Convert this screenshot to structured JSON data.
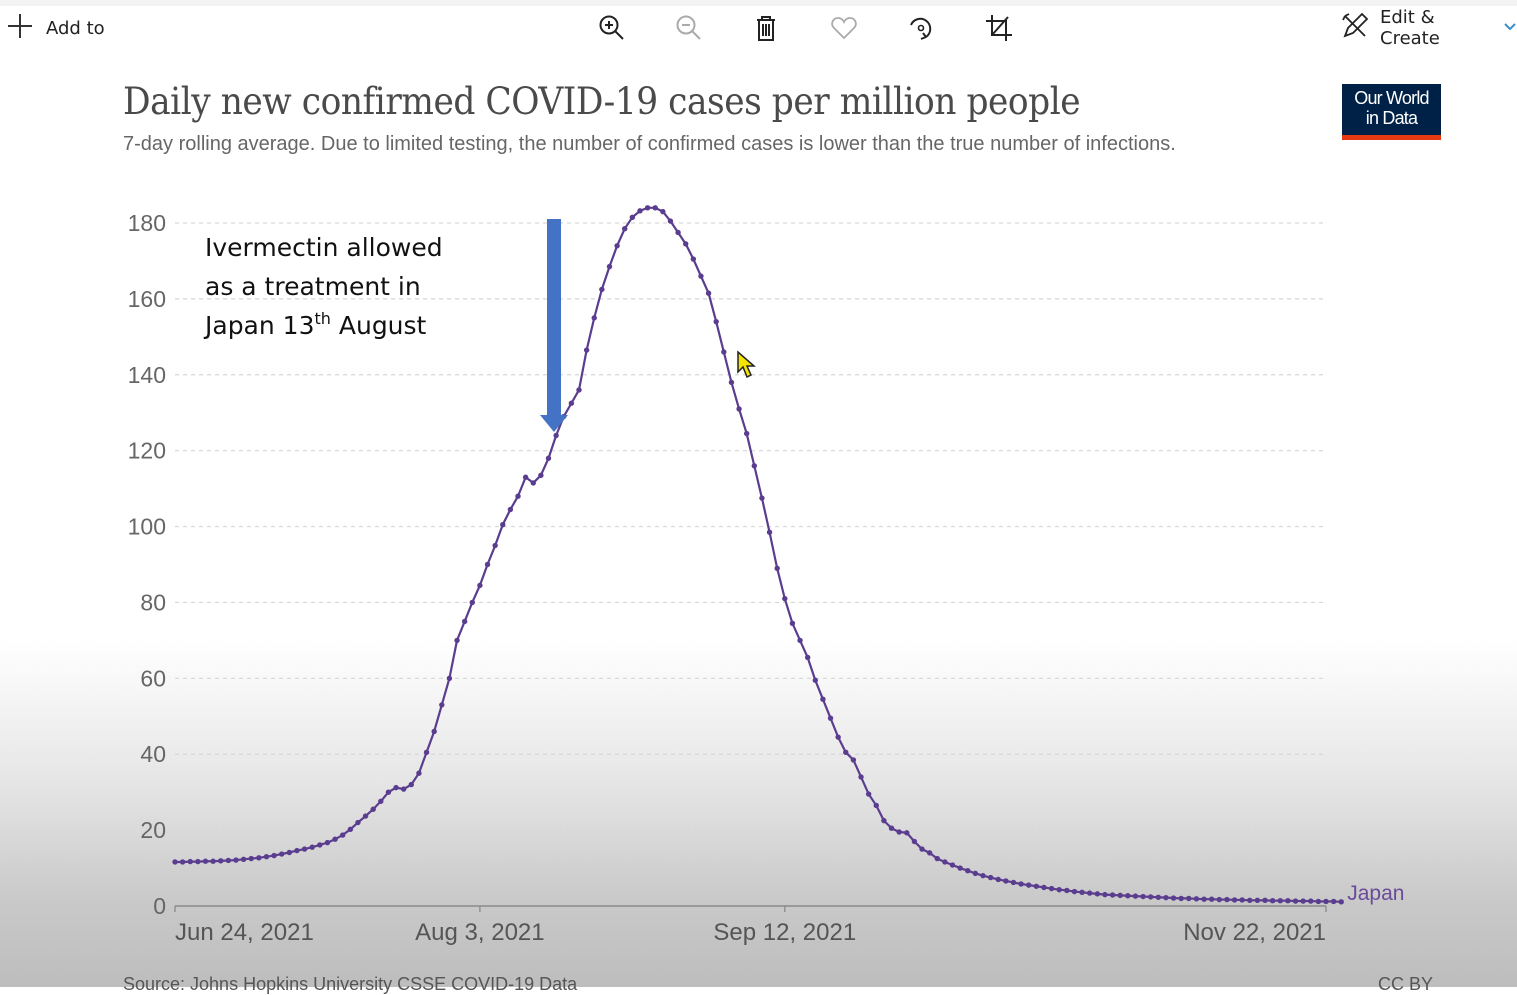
{
  "toolbar": {
    "add_to_label": "Add to",
    "edit_create_label": "Edit & Create",
    "icons": [
      "plus-icon",
      "zoom-in-icon",
      "zoom-out-icon",
      "trash-icon",
      "heart-icon",
      "rotate-icon",
      "crop-icon",
      "edit-create-icon",
      "chevron-down-icon"
    ]
  },
  "logo": {
    "line1": "Our World",
    "line2": "in Data"
  },
  "annotation": {
    "line1": "Ivermectin allowed",
    "line2": "as a treatment in",
    "line3_pre": "Japan 13",
    "line3_sup": "th",
    "line3_post": " August",
    "arrow_date_day_index": 50
  },
  "footer": {
    "source": "Source: Johns Hopkins University CSSE COVID-19 Data",
    "license": "CC BY"
  },
  "colors": {
    "series": "#5b3d8f",
    "arrow": "#4472c4",
    "logo_bg": "#002147",
    "logo_bar": "#e63912"
  },
  "chart_data": {
    "type": "line",
    "title": "Daily new confirmed COVID-19 cases per million people",
    "subtitle": "7-day rolling average. Due to limited testing, the number of confirmed cases is lower than the true number of infections.",
    "xlabel": "",
    "ylabel": "",
    "x_start": "Jun 24, 2021",
    "x_end": "Nov 22, 2021",
    "x_ticks": [
      {
        "label": "Jun 24, 2021",
        "day": 0
      },
      {
        "label": "Aug 3, 2021",
        "day": 40
      },
      {
        "label": "Sep 12, 2021",
        "day": 80
      },
      {
        "label": "Nov 22, 2021",
        "day": 151
      }
    ],
    "y_ticks": [
      0,
      20,
      40,
      60,
      80,
      100,
      120,
      140,
      160,
      180
    ],
    "ylim": [
      0,
      180
    ],
    "xlim_days": [
      0,
      151
    ],
    "grid": true,
    "legend": "end-of-line label (right)",
    "series": [
      {
        "name": "Japan",
        "values": [
          11.6,
          11.6,
          11.7,
          11.7,
          11.8,
          11.8,
          11.9,
          12.0,
          12.1,
          12.3,
          12.5,
          12.7,
          13.0,
          13.3,
          13.7,
          14.1,
          14.6,
          15.0,
          15.5,
          16.1,
          16.7,
          17.6,
          18.7,
          20.2,
          22.0,
          23.7,
          25.5,
          27.6,
          30.0,
          31.2,
          30.8,
          32.0,
          35.0,
          40.5,
          46.0,
          53.0,
          60.0,
          70.0,
          75.0,
          80.0,
          84.5,
          90.0,
          95.0,
          100.5,
          104.5,
          108.0,
          113.0,
          111.5,
          113.5,
          118.0,
          124.0,
          129.0,
          132.5,
          136.0,
          146.5,
          155.0,
          162.5,
          168.5,
          174.0,
          178.5,
          181.5,
          183.2,
          184.0,
          184.0,
          183.0,
          180.5,
          177.5,
          174.5,
          170.5,
          166.0,
          161.5,
          154.0,
          146.0,
          138.0,
          131.0,
          124.5,
          116.0,
          107.5,
          98.5,
          89.0,
          81.0,
          74.5,
          70.0,
          65.5,
          59.5,
          54.5,
          49.5,
          44.5,
          40.5,
          38.5,
          34.0,
          29.5,
          26.5,
          22.5,
          20.5,
          19.5,
          19.3,
          17.0,
          15.0,
          14.0,
          12.5,
          11.6,
          10.8,
          10.0,
          9.3,
          8.6,
          8.0,
          7.5,
          7.0,
          6.6,
          6.2,
          5.8,
          5.5,
          5.2,
          4.9,
          4.6,
          4.3,
          4.1,
          3.8,
          3.6,
          3.4,
          3.2,
          3.0,
          2.9,
          2.8,
          2.7,
          2.6,
          2.5,
          2.4,
          2.3,
          2.2,
          2.1,
          2.0,
          2.0,
          1.9,
          1.8,
          1.8,
          1.7,
          1.7,
          1.6,
          1.6,
          1.5,
          1.5,
          1.5,
          1.4,
          1.4,
          1.4,
          1.3,
          1.3,
          1.3,
          1.2,
          1.2,
          1.2,
          1.1
        ]
      }
    ]
  }
}
